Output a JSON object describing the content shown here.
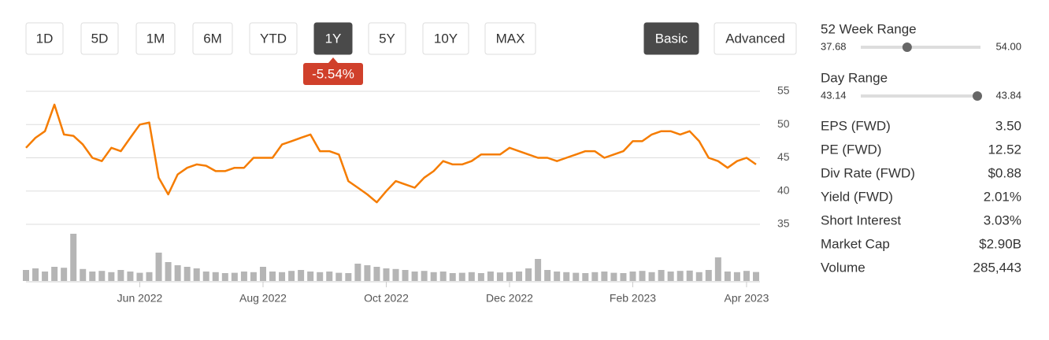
{
  "toolbar": {
    "periods": [
      "1D",
      "5D",
      "1M",
      "6M",
      "YTD",
      "1Y",
      "5Y",
      "10Y",
      "MAX"
    ],
    "active_period": 5,
    "modes": [
      "Basic",
      "Advanced"
    ],
    "active_mode": 0,
    "change": "-5.54%"
  },
  "chart_data": {
    "type": "line",
    "categories": [
      null,
      null,
      null,
      null,
      null,
      null,
      null,
      null,
      null,
      null,
      null,
      null,
      "Jun 2022",
      null,
      null,
      null,
      null,
      null,
      null,
      null,
      null,
      null,
      null,
      null,
      null,
      "Aug 2022",
      null,
      null,
      null,
      null,
      null,
      null,
      null,
      null,
      null,
      null,
      null,
      null,
      "Oct 2022",
      null,
      null,
      null,
      null,
      null,
      null,
      null,
      null,
      null,
      null,
      null,
      null,
      "Dec 2022",
      null,
      null,
      null,
      null,
      null,
      null,
      null,
      null,
      null,
      null,
      null,
      null,
      "Feb 2023",
      null,
      null,
      null,
      null,
      null,
      null,
      null,
      null,
      null,
      null,
      null,
      "Apr 2023",
      null
    ],
    "values": [
      46.5,
      48,
      49,
      53,
      48.5,
      48.3,
      47,
      45,
      44.5,
      46.5,
      46,
      48,
      50,
      50.3,
      42,
      39.5,
      42.5,
      43.5,
      44,
      43.8,
      43,
      43,
      43.5,
      43.5,
      45,
      45,
      45,
      47,
      47.5,
      48,
      48.5,
      46,
      46,
      45.5,
      41.5,
      40.5,
      39.5,
      38.3,
      40,
      41.5,
      41,
      40.5,
      42,
      43,
      44.5,
      44,
      44,
      44.5,
      45.5,
      45.5,
      45.5,
      46.5,
      46,
      45.5,
      45,
      45,
      44.5,
      45,
      45.5,
      46,
      46,
      45,
      45.5,
      46,
      47.5,
      47.5,
      48.5,
      49,
      49,
      48.5,
      49,
      47.5,
      45,
      44.5,
      43.5,
      44.5,
      45,
      44
    ],
    "color": "#f57c00",
    "volume": [
      350000,
      400000,
      300000,
      450000,
      420000,
      1500000,
      380000,
      300000,
      320000,
      280000,
      350000,
      300000,
      260000,
      280000,
      900000,
      600000,
      500000,
      450000,
      400000,
      300000,
      280000,
      250000,
      260000,
      300000,
      280000,
      450000,
      300000,
      280000,
      320000,
      350000,
      300000,
      280000,
      300000,
      260000,
      250000,
      550000,
      500000,
      450000,
      400000,
      380000,
      350000,
      300000,
      320000,
      280000,
      300000,
      250000,
      260000,
      280000,
      250000,
      300000,
      270000,
      280000,
      300000,
      400000,
      700000,
      350000,
      300000,
      280000,
      260000,
      250000,
      280000,
      300000,
      260000,
      250000,
      300000,
      320000,
      280000,
      350000,
      300000,
      320000,
      330000,
      280000,
      350000,
      750000,
      300000,
      280000,
      320000,
      285443
    ],
    "volume_color": "#b5b5b5",
    "ylim": [
      35,
      55
    ],
    "yticks": [
      35,
      40,
      45,
      50,
      55
    ],
    "grid": true
  },
  "stats": {
    "week52": {
      "label": "52 Week Range",
      "low": "37.68",
      "high": "54.00"
    },
    "day": {
      "label": "Day Range",
      "low": "43.14",
      "high": "43.84"
    },
    "rows": [
      [
        "EPS (FWD)",
        "3.50"
      ],
      [
        "PE (FWD)",
        "12.52"
      ],
      [
        "Div Rate (FWD)",
        "$0.88"
      ],
      [
        "Yield (FWD)",
        "2.01%"
      ],
      [
        "Short Interest",
        "3.03%"
      ],
      [
        "Market Cap",
        "$2.90B"
      ],
      [
        "Volume",
        "285,443"
      ]
    ]
  }
}
